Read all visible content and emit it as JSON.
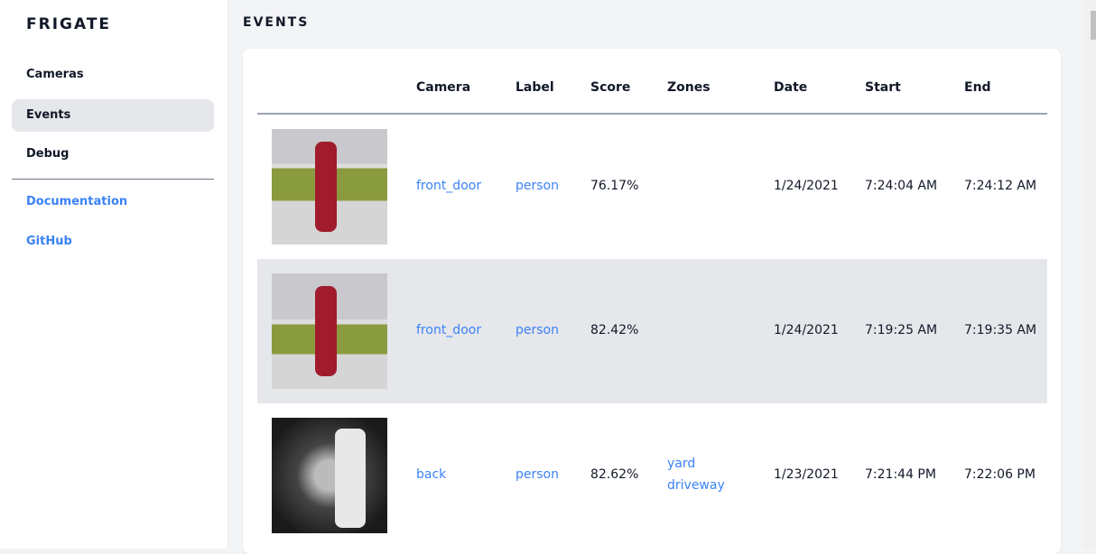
{
  "sidebar": {
    "brand": "FRIGATE",
    "items": [
      {
        "label": "Cameras"
      },
      {
        "label": "Events",
        "active": true
      },
      {
        "label": "Debug"
      }
    ],
    "links": [
      {
        "label": "Documentation"
      },
      {
        "label": "GitHub"
      }
    ]
  },
  "main": {
    "title": "EVENTS",
    "columns": [
      "",
      "Camera",
      "Label",
      "Score",
      "Zones",
      "Date",
      "Start",
      "End"
    ],
    "rows": [
      {
        "camera": "front_door",
        "label": "person",
        "score": "76.17%",
        "zones": [
          "",
          ""
        ],
        "date": "1/24/2021",
        "start": "7:24:04 AM",
        "end": "7:24:12 AM"
      },
      {
        "camera": "front_door",
        "label": "person",
        "score": "82.42%",
        "zones": [
          "",
          ""
        ],
        "date": "1/24/2021",
        "start": "7:19:25 AM",
        "end": "7:19:35 AM"
      },
      {
        "camera": "back",
        "label": "person",
        "score": "82.62%",
        "zones": [
          "yard",
          "driveway"
        ],
        "date": "1/23/2021",
        "start": "7:21:44 PM",
        "end": "7:22:06 PM"
      }
    ]
  },
  "colors": {
    "accent": "#3b82f6",
    "active_bg": "#e5e7eb",
    "page_bg": "#f3f4f6"
  }
}
